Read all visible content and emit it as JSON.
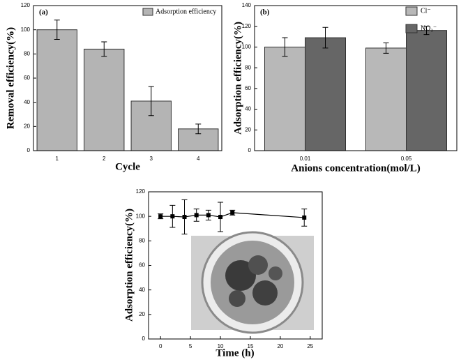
{
  "chart_data": [
    {
      "type": "bar",
      "label": "(a)",
      "xlabel": "Cycle",
      "ylabel": "Removal efficiency(%)",
      "categories": [
        "1",
        "2",
        "3",
        "4"
      ],
      "series": [
        {
          "name": "Adsorption efficiency",
          "color": "#b4b4b4",
          "values": [
            100,
            84,
            41,
            18
          ],
          "errors": [
            8,
            6,
            12,
            4
          ]
        }
      ],
      "ylim": [
        0,
        120
      ],
      "yticks": [
        0,
        20,
        40,
        60,
        80,
        100,
        120
      ]
    },
    {
      "type": "bar",
      "label": "(b)",
      "xlabel": "Anions concentration(mol/L)",
      "ylabel": "Adsorption efficiency(%)",
      "categories": [
        "0.01",
        "0.05"
      ],
      "series": [
        {
          "name": "Cl⁻",
          "color": "#b8b8b8",
          "values": [
            100,
            99
          ],
          "errors": [
            9,
            5
          ]
        },
        {
          "name": "NO₃⁻",
          "color": "#666666",
          "values": [
            109,
            116
          ],
          "errors": [
            10,
            4
          ]
        }
      ],
      "ylim": [
        0,
        140
      ],
      "yticks": [
        0,
        20,
        40,
        60,
        80,
        100,
        120,
        140
      ]
    },
    {
      "type": "line",
      "xlabel": "Time (h)",
      "ylabel": "Adsorption efficiency(%)",
      "x": [
        0,
        2,
        4,
        6,
        8,
        10,
        12,
        24
      ],
      "series": [
        {
          "color": "#000000",
          "values": [
            100,
            100,
            99.5,
            101,
            101,
            99.5,
            103,
            99
          ],
          "errors": [
            2,
            9,
            14,
            5,
            4,
            12,
            2,
            7
          ]
        }
      ],
      "xlim": [
        -2,
        27
      ],
      "xticks": [
        0,
        5,
        10,
        15,
        20,
        25
      ],
      "ylim": [
        0,
        120
      ],
      "yticks": [
        0,
        20,
        40,
        60,
        80,
        100,
        120
      ]
    }
  ]
}
